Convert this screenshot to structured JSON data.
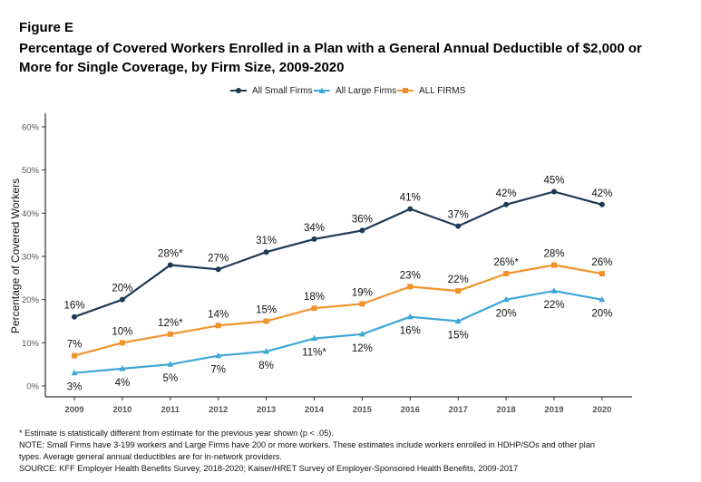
{
  "figure_label": "Figure E",
  "title": "Percentage of Covered Workers Enrolled in a Plan with a General Annual Deductible of $2,000 or More for Single Coverage, by Firm Size, 2009-2020",
  "notes": [
    "* Estimate is statistically different from estimate for the previous year shown (p < .05).",
    "NOTE: Small Firms have 3-199 workers and Large Firms have 200 or more workers. These estimates include workers enrolled in HDHP/SOs and other plan",
    "types. Average general annual deductibles are for in-network providers.",
    "SOURCE: KFF Employer Health Benefits Survey, 2018-2020; Kaiser/HRET Survey of Employer-Sponsored Health Benefits, 2009-2017"
  ],
  "chart_data": {
    "type": "line",
    "x": [
      "2009",
      "2010",
      "2011",
      "2012",
      "2013",
      "2014",
      "2015",
      "2016",
      "2017",
      "2018",
      "2019",
      "2020"
    ],
    "ylabel": "Percentage of Covered Workers",
    "xlabel": "",
    "ylim": [
      0,
      60
    ],
    "yticks": [
      "0%",
      "10%",
      "20%",
      "30%",
      "40%",
      "50%",
      "60%"
    ],
    "ytick_values": [
      0,
      10,
      20,
      30,
      40,
      50,
      60
    ],
    "grid": false,
    "legend_position": "top-center",
    "series": [
      {
        "name": "All Small Firms",
        "color": "#1c3a57",
        "marker": "circle",
        "label_position": "above",
        "values": [
          16,
          20,
          28,
          27,
          31,
          34,
          36,
          41,
          37,
          42,
          45,
          42
        ],
        "labels": [
          "16%",
          "20%",
          "28%*",
          "27%",
          "31%",
          "34%",
          "36%",
          "41%",
          "37%",
          "42%",
          "45%",
          "42%"
        ]
      },
      {
        "name": "All Large Firms",
        "color": "#3fa6d6",
        "marker": "triangle",
        "label_position": "below",
        "values": [
          3,
          4,
          5,
          7,
          8,
          11,
          12,
          16,
          15,
          20,
          22,
          20
        ],
        "labels": [
          "3%",
          "4%",
          "5%",
          "7%",
          "8%",
          "11%*",
          "12%",
          "16%",
          "15%",
          "20%",
          "22%",
          "20%"
        ]
      },
      {
        "name": "ALL FIRMS",
        "color": "#f0932b",
        "marker": "square",
        "label_position": "above",
        "values": [
          7,
          10,
          12,
          14,
          15,
          18,
          19,
          23,
          22,
          26,
          28,
          26
        ],
        "labels": [
          "7%",
          "10%",
          "12%*",
          "14%",
          "15%",
          "18%",
          "19%",
          "23%",
          "22%",
          "26%*",
          "28%",
          "26%"
        ]
      }
    ]
  }
}
